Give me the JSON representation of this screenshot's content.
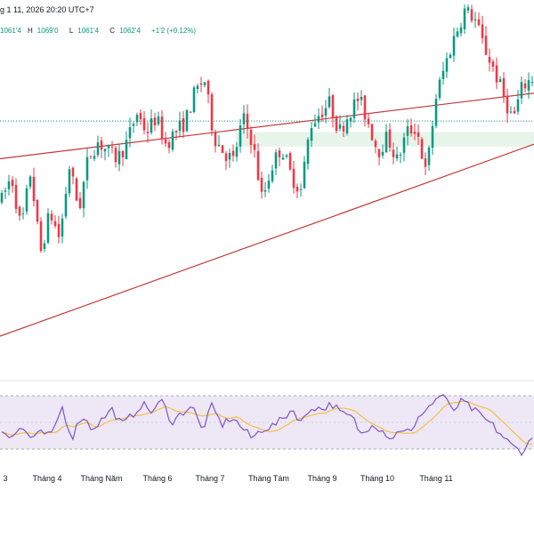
{
  "header": {
    "datetime": "g 1 11, 2026 20:20 UTC+7",
    "open_value": "1061'4",
    "high_label": "H",
    "high_value": "1069'0",
    "low_label": "L",
    "low_value": "1061'4",
    "close_label": "C",
    "close_value": "1062'4",
    "change": "+1'2 (+0.12%)"
  },
  "colors": {
    "up": "#089981",
    "down": "#f23645",
    "channel": "#c0393b",
    "rsi_line": "#7e57c2",
    "rsi_ma": "#f5c044",
    "rsi_band": "#ede7f6",
    "zone": "#e6f4ea",
    "price_line": "#089981"
  },
  "chart_data": [
    {
      "type": "candlestick",
      "x_tick_labels": [
        "3",
        "Tháng 4",
        "Tháng Năm",
        "Tháng 6",
        "Tháng 7",
        "Tháng Tám",
        "Tháng 9",
        "Tháng 10",
        "Tháng 11"
      ],
      "y_range": [
        955,
        1105
      ],
      "current_price": 1062.5,
      "support_zone": [
        1052,
        1058
      ],
      "channel_upper": {
        "start": 1047,
        "end": 1074
      },
      "channel_lower": {
        "start": 974,
        "end": 1053
      },
      "close_path": [
        1030,
        1040,
        1018,
        1042,
        1008,
        1025,
        1014,
        1044,
        1026,
        1048,
        1054,
        1050,
        1047,
        1054,
        1066,
        1058,
        1064,
        1053,
        1058,
        1062,
        1074,
        1080,
        1056,
        1050,
        1046,
        1064,
        1054,
        1030,
        1044,
        1052,
        1040,
        1034,
        1061,
        1066,
        1070,
        1058,
        1066,
        1072,
        1062,
        1050,
        1056,
        1046,
        1058,
        1060,
        1040,
        1072,
        1086,
        1098,
        1108,
        1105,
        1093,
        1084,
        1073,
        1063,
        1077,
        1080
      ],
      "candle_count": 150
    },
    {
      "type": "line",
      "name": "RSI",
      "y_range": [
        20,
        80
      ],
      "band": [
        30,
        70
      ],
      "rsi_path": [
        44,
        40,
        46,
        38,
        42,
        40,
        62,
        38,
        56,
        45,
        52,
        60,
        48,
        55,
        64,
        58,
        66,
        50,
        57,
        63,
        44,
        62,
        48,
        54,
        46,
        38,
        45,
        47,
        52,
        60,
        50,
        62,
        60,
        64,
        56,
        54,
        40,
        50,
        44,
        38,
        46,
        42,
        58,
        64,
        72,
        58,
        66,
        60,
        54,
        48,
        40,
        32,
        28,
        38
      ]
    }
  ]
}
